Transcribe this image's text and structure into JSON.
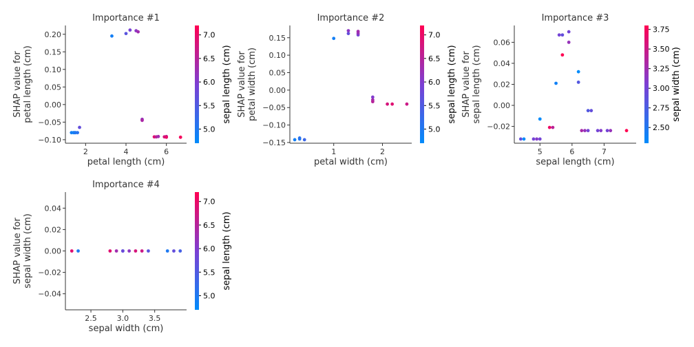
{
  "colormap": {
    "low": "#008bfb",
    "high": "#ff0052"
  },
  "chart_data": [
    {
      "type": "scatter",
      "title": "Importance #1",
      "xlabel": "petal length (cm)",
      "ylabel": [
        "SHAP value for",
        "petal length (cm)"
      ],
      "xlim": [
        1.0,
        7.0
      ],
      "ylim": [
        -0.11,
        0.225
      ],
      "xticks": [
        {
          "v": 2,
          "label": "2"
        },
        {
          "v": 4,
          "label": "4"
        },
        {
          "v": 6,
          "label": "6"
        }
      ],
      "yticks": [
        {
          "v": -0.1,
          "label": "−0.10"
        },
        {
          "v": -0.05,
          "label": "−0.05"
        },
        {
          "v": 0.0,
          "label": "0.00"
        },
        {
          "v": 0.05,
          "label": "0.05"
        },
        {
          "v": 0.1,
          "label": "0.10"
        },
        {
          "v": 0.15,
          "label": "0.15"
        },
        {
          "v": 0.2,
          "label": "0.20"
        }
      ],
      "colorbar": {
        "label": "sepal length (cm)",
        "range": [
          4.7,
          7.2
        ],
        "ticks": [
          {
            "v": 5.0,
            "label": "5.0"
          },
          {
            "v": 5.5,
            "label": "5.5"
          },
          {
            "v": 6.0,
            "label": "6.0"
          },
          {
            "v": 6.5,
            "label": "6.5"
          },
          {
            "v": 7.0,
            "label": "7.0"
          }
        ]
      },
      "points": [
        {
          "x": 1.3,
          "y": -0.08,
          "c": 4.9
        },
        {
          "x": 1.4,
          "y": -0.08,
          "c": 4.8
        },
        {
          "x": 1.45,
          "y": -0.08,
          "c": 5.0
        },
        {
          "x": 1.5,
          "y": -0.08,
          "c": 5.0
        },
        {
          "x": 1.6,
          "y": -0.08,
          "c": 5.1
        },
        {
          "x": 1.7,
          "y": -0.065,
          "c": 5.7
        },
        {
          "x": 3.3,
          "y": 0.195,
          "c": 4.9
        },
        {
          "x": 4.0,
          "y": 0.202,
          "c": 5.6
        },
        {
          "x": 4.2,
          "y": 0.212,
          "c": 5.9
        },
        {
          "x": 4.5,
          "y": 0.21,
          "c": 6.1
        },
        {
          "x": 4.6,
          "y": 0.207,
          "c": 6.3
        },
        {
          "x": 4.8,
          "y": -0.042,
          "c": 6.2
        },
        {
          "x": 4.8,
          "y": -0.045,
          "c": 6.4
        },
        {
          "x": 5.4,
          "y": -0.092,
          "c": 6.9
        },
        {
          "x": 5.5,
          "y": -0.092,
          "c": 6.5
        },
        {
          "x": 5.6,
          "y": -0.091,
          "c": 6.3
        },
        {
          "x": 5.9,
          "y": -0.092,
          "c": 6.8
        },
        {
          "x": 6.0,
          "y": -0.091,
          "c": 6.5
        },
        {
          "x": 6.0,
          "y": -0.093,
          "c": 7.0
        },
        {
          "x": 6.7,
          "y": -0.093,
          "c": 7.1
        }
      ]
    },
    {
      "type": "scatter",
      "title": "Importance #2",
      "xlabel": "petal width (cm)",
      "ylabel": [
        "SHAP value for",
        "petal width (cm)"
      ],
      "xlim": [
        0.1,
        2.6
      ],
      "ylim": [
        -0.152,
        0.185
      ],
      "xticks": [
        {
          "v": 1,
          "label": "1"
        },
        {
          "v": 2,
          "label": "2"
        }
      ],
      "yticks": [
        {
          "v": -0.15,
          "label": "−0.15"
        },
        {
          "v": -0.1,
          "label": "−0.10"
        },
        {
          "v": -0.05,
          "label": "−0.05"
        },
        {
          "v": 0.0,
          "label": "0.00"
        },
        {
          "v": 0.05,
          "label": "0.05"
        },
        {
          "v": 0.1,
          "label": "0.10"
        },
        {
          "v": 0.15,
          "label": "0.15"
        }
      ],
      "colorbar": {
        "label": "sepal length (cm)",
        "range": [
          4.7,
          7.2
        ],
        "ticks": [
          {
            "v": 5.0,
            "label": "5.0"
          },
          {
            "v": 5.5,
            "label": "5.5"
          },
          {
            "v": 6.0,
            "label": "6.0"
          },
          {
            "v": 6.5,
            "label": "6.5"
          },
          {
            "v": 7.0,
            "label": "7.0"
          }
        ]
      },
      "points": [
        {
          "x": 0.2,
          "y": -0.142,
          "c": 4.9
        },
        {
          "x": 0.3,
          "y": -0.14,
          "c": 5.0
        },
        {
          "x": 0.3,
          "y": -0.137,
          "c": 5.1
        },
        {
          "x": 0.4,
          "y": -0.142,
          "c": 5.3
        },
        {
          "x": 1.0,
          "y": 0.148,
          "c": 4.9
        },
        {
          "x": 1.3,
          "y": 0.162,
          "c": 5.7
        },
        {
          "x": 1.3,
          "y": 0.17,
          "c": 6.1
        },
        {
          "x": 1.5,
          "y": 0.158,
          "c": 5.9
        },
        {
          "x": 1.5,
          "y": 0.163,
          "c": 6.2
        },
        {
          "x": 1.5,
          "y": 0.168,
          "c": 6.3
        },
        {
          "x": 1.8,
          "y": -0.02,
          "c": 6.0
        },
        {
          "x": 1.8,
          "y": -0.028,
          "c": 6.3
        },
        {
          "x": 1.8,
          "y": -0.033,
          "c": 6.5
        },
        {
          "x": 2.1,
          "y": -0.04,
          "c": 6.8
        },
        {
          "x": 2.2,
          "y": -0.04,
          "c": 6.9
        },
        {
          "x": 2.5,
          "y": -0.04,
          "c": 6.7
        }
      ]
    },
    {
      "type": "scatter",
      "title": "Importance #3",
      "xlabel": "sepal length (cm)",
      "ylabel": [
        "SHAP value for",
        "sepal length (cm)"
      ],
      "xlim": [
        4.2,
        8.0
      ],
      "ylim": [
        -0.036,
        0.076
      ],
      "xticks": [
        {
          "v": 5,
          "label": "5"
        },
        {
          "v": 6,
          "label": "6"
        },
        {
          "v": 7,
          "label": "7"
        }
      ],
      "yticks": [
        {
          "v": -0.02,
          "label": "−0.02"
        },
        {
          "v": 0.0,
          "label": "0.00"
        },
        {
          "v": 0.02,
          "label": "0.02"
        },
        {
          "v": 0.04,
          "label": "0.04"
        },
        {
          "v": 0.06,
          "label": "0.06"
        }
      ],
      "colorbar": {
        "label": "sepal width (cm)",
        "range": [
          2.3,
          3.8
        ],
        "ticks": [
          {
            "v": 2.5,
            "label": "2.50"
          },
          {
            "v": 2.75,
            "label": "2.75"
          },
          {
            "v": 3.0,
            "label": "3.00"
          },
          {
            "v": 3.25,
            "label": "3.25"
          },
          {
            "v": 3.5,
            "label": "3.50"
          },
          {
            "v": 3.75,
            "label": "3.75"
          }
        ]
      },
      "points": [
        {
          "x": 4.4,
          "y": -0.032,
          "c": 2.9
        },
        {
          "x": 4.5,
          "y": -0.032,
          "c": 2.3
        },
        {
          "x": 4.8,
          "y": -0.032,
          "c": 3.0
        },
        {
          "x": 4.9,
          "y": -0.032,
          "c": 3.1
        },
        {
          "x": 5.0,
          "y": -0.032,
          "c": 3.0
        },
        {
          "x": 5.0,
          "y": -0.013,
          "c": 2.3
        },
        {
          "x": 5.3,
          "y": -0.021,
          "c": 3.7
        },
        {
          "x": 5.4,
          "y": -0.021,
          "c": 3.4
        },
        {
          "x": 5.5,
          "y": 0.021,
          "c": 2.4
        },
        {
          "x": 5.6,
          "y": 0.067,
          "c": 3.0
        },
        {
          "x": 5.7,
          "y": 0.067,
          "c": 2.9
        },
        {
          "x": 5.7,
          "y": 0.048,
          "c": 3.8
        },
        {
          "x": 5.9,
          "y": 0.07,
          "c": 3.0
        },
        {
          "x": 5.9,
          "y": 0.06,
          "c": 3.2
        },
        {
          "x": 6.2,
          "y": 0.032,
          "c": 2.2
        },
        {
          "x": 6.2,
          "y": 0.022,
          "c": 2.8
        },
        {
          "x": 6.3,
          "y": -0.024,
          "c": 3.3
        },
        {
          "x": 6.4,
          "y": -0.024,
          "c": 3.2
        },
        {
          "x": 6.5,
          "y": -0.005,
          "c": 2.8
        },
        {
          "x": 6.5,
          "y": -0.024,
          "c": 3.0
        },
        {
          "x": 6.6,
          "y": -0.005,
          "c": 2.9
        },
        {
          "x": 6.8,
          "y": -0.024,
          "c": 3.0
        },
        {
          "x": 6.9,
          "y": -0.024,
          "c": 3.1
        },
        {
          "x": 7.1,
          "y": -0.024,
          "c": 3.0
        },
        {
          "x": 7.2,
          "y": -0.024,
          "c": 3.2
        },
        {
          "x": 7.7,
          "y": -0.024,
          "c": 3.8
        }
      ]
    },
    {
      "type": "scatter",
      "title": "Importance #4",
      "xlabel": "sepal width (cm)",
      "ylabel": [
        "SHAP value for",
        "sepal width (cm)"
      ],
      "xlim": [
        2.1,
        4.0
      ],
      "ylim": [
        -0.055,
        0.055
      ],
      "xticks": [
        {
          "v": 2.5,
          "label": "2.5"
        },
        {
          "v": 3.0,
          "label": "3.0"
        },
        {
          "v": 3.5,
          "label": "3.5"
        }
      ],
      "yticks": [
        {
          "v": -0.04,
          "label": "−0.04"
        },
        {
          "v": -0.02,
          "label": "−0.02"
        },
        {
          "v": 0.0,
          "label": "0.00"
        },
        {
          "v": 0.02,
          "label": "0.02"
        },
        {
          "v": 0.04,
          "label": "0.04"
        }
      ],
      "colorbar": {
        "label": "sepal length (cm)",
        "range": [
          4.7,
          7.2
        ],
        "ticks": [
          {
            "v": 5.0,
            "label": "5.0"
          },
          {
            "v": 5.5,
            "label": "5.5"
          },
          {
            "v": 6.0,
            "label": "6.0"
          },
          {
            "v": 6.5,
            "label": "6.5"
          },
          {
            "v": 7.0,
            "label": "7.0"
          }
        ]
      },
      "points": [
        {
          "x": 2.2,
          "y": 0.0,
          "c": 6.9
        },
        {
          "x": 2.3,
          "y": 0.0,
          "c": 5.0
        },
        {
          "x": 2.8,
          "y": 0.0,
          "c": 6.9
        },
        {
          "x": 2.9,
          "y": 0.0,
          "c": 6.3
        },
        {
          "x": 3.0,
          "y": 0.0,
          "c": 4.9
        },
        {
          "x": 3.0,
          "y": 0.0,
          "c": 5.8
        },
        {
          "x": 3.1,
          "y": 0.0,
          "c": 6.1
        },
        {
          "x": 3.2,
          "y": 0.0,
          "c": 6.8
        },
        {
          "x": 3.3,
          "y": 0.0,
          "c": 6.7
        },
        {
          "x": 3.4,
          "y": 0.0,
          "c": 5.6
        },
        {
          "x": 3.7,
          "y": 0.0,
          "c": 5.0
        },
        {
          "x": 3.8,
          "y": 0.0,
          "c": 5.7
        },
        {
          "x": 3.9,
          "y": 0.0,
          "c": 5.4
        }
      ]
    }
  ]
}
